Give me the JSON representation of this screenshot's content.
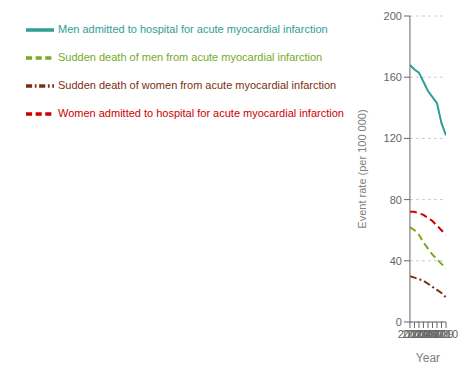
{
  "chart_data": {
    "type": "line",
    "x": [
      2002,
      2003,
      2004,
      2005,
      2006,
      2007,
      2008,
      2009,
      2010
    ],
    "xlim": [
      2002,
      2010
    ],
    "xticks": [
      2002,
      2003,
      2004,
      2005,
      2006,
      2007,
      2008,
      2009,
      2010
    ],
    "ylim": [
      0,
      200
    ],
    "yticks": [
      0,
      40,
      80,
      120,
      160,
      200
    ],
    "xlabel": "Year",
    "ylabel": "Event rate (per 100 000)",
    "grid": "y",
    "legend": "top",
    "series": [
      {
        "name": "Men admitted to hospital for acute myocardial infarction",
        "color": "#2e9e96",
        "line_style": "solid",
        "values": [
          168,
          165,
          163,
          157,
          151,
          147,
          143,
          130,
          122
        ]
      },
      {
        "name": "Women admitted to hospital for acute myocardial infarction",
        "color": "#cc0000",
        "line_style": "dashed",
        "values": [
          72,
          72,
          71,
          70,
          68,
          66,
          63,
          60,
          57
        ]
      },
      {
        "name": "Sudden death of men from acute myocardial infarction",
        "color": "#77aa22",
        "line_style": "dashed",
        "values": [
          62,
          60,
          57,
          52,
          48,
          44,
          41,
          38,
          35
        ]
      },
      {
        "name": "Sudden death of women from acute myocardial infarction",
        "color": "#7a3010",
        "line_style": "dashdot",
        "values": [
          30,
          29,
          28,
          27,
          25,
          23,
          21,
          19,
          16
        ]
      }
    ]
  }
}
